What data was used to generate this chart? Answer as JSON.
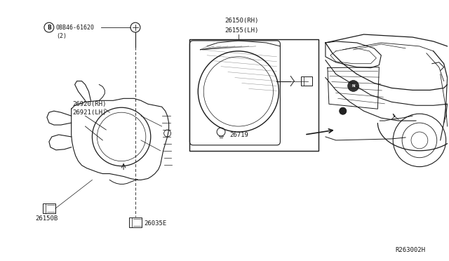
{
  "background_color": "#ffffff",
  "line_color": "#1a1a1a",
  "text_color": "#1a1a1a",
  "fig_width": 6.4,
  "fig_height": 3.72,
  "dpi": 100,
  "labels": {
    "part_B": "B",
    "part_num_screw": "08B46-61620",
    "part_num_screw2": "(2)",
    "part_26920": "26920(RH)",
    "part_26921": "26921(LH)",
    "part_26150B": "26150B",
    "part_26035E": "26035E",
    "part_26150RH": "26150(RH)",
    "part_26155LH": "26155(LH)",
    "part_26719": "26719",
    "ref": "R263002H"
  }
}
